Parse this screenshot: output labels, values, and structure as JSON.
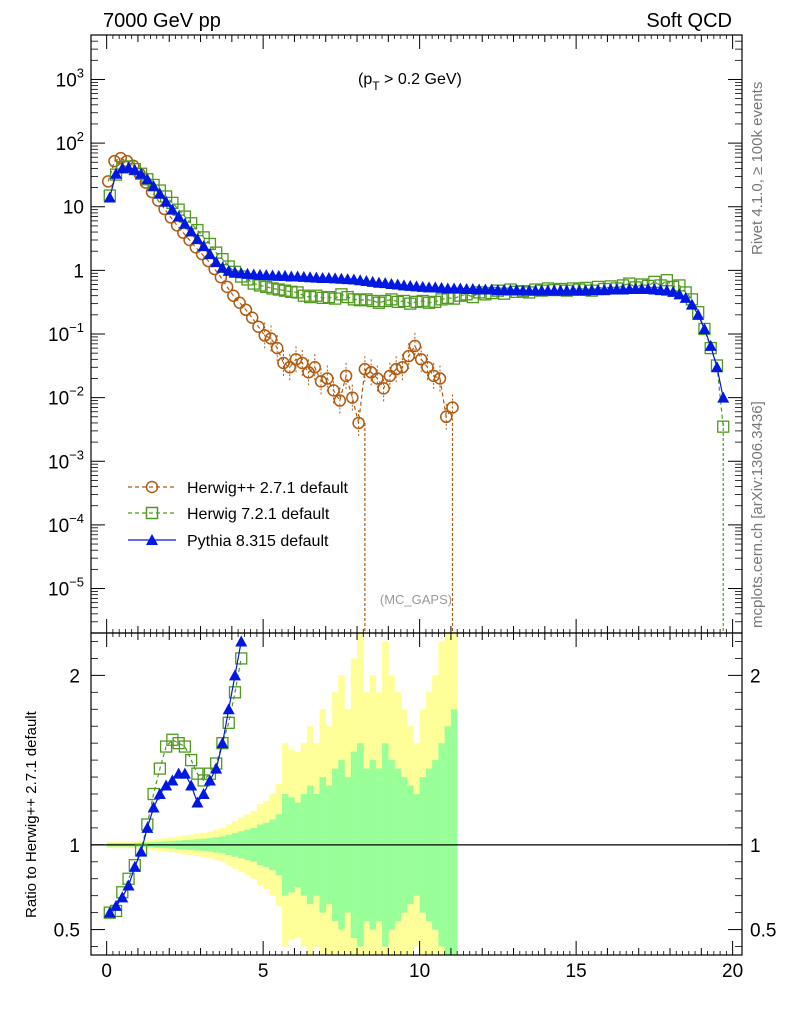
{
  "header": {
    "left": "7000 GeV pp",
    "right": "Soft QCD"
  },
  "annotations": {
    "cut": "(p",
    "cut_sub": "T",
    "cut_rest": " > 0.2 GeV)",
    "rivet": "Rivet 4.1.0, ≥ 100k events",
    "mcplots": "mcplots.cern.ch [arXiv:1306.3436]",
    "gaps": "(MC_GAPS)"
  },
  "colors": {
    "herwigpp": "#b05a10",
    "herwig7": "#4e9a1e",
    "pythia": "#0018e0",
    "band_inner": "#99ff99",
    "band_outer": "#ffff99"
  },
  "chart_data": [
    {
      "type": "line",
      "panel": "main",
      "yscale": "log",
      "xlim": [
        -0.5,
        20.3
      ],
      "ylim": [
        2e-06,
        5000
      ],
      "y_ticks": [
        "10^-5",
        "10^-4",
        "10^-3",
        "10^-2",
        "10^-1",
        "1",
        "10",
        "10^2",
        "10^3"
      ],
      "legend_position": "lower-left",
      "series": [
        {
          "name": "Herwig++ 2.7.1 default",
          "x": [
            0.05,
            0.25,
            0.45,
            0.65,
            0.85,
            1.05,
            1.25,
            1.45,
            1.65,
            1.85,
            2.05,
            2.25,
            2.45,
            2.65,
            2.85,
            3.05,
            3.25,
            3.45,
            3.65,
            3.85,
            4.05,
            4.25,
            4.45,
            4.65,
            4.85,
            5.05,
            5.25,
            5.45,
            5.65,
            5.85,
            6.05,
            6.25,
            6.45,
            6.65,
            6.85,
            7.05,
            7.25,
            7.45,
            7.65,
            7.85,
            8.05,
            8.25,
            8.45,
            8.65,
            8.85,
            9.05,
            9.25,
            9.45,
            9.65,
            9.85,
            10.05,
            10.25,
            10.45,
            10.65,
            10.85,
            11.05
          ],
          "values": [
            25,
            52,
            58,
            52,
            44,
            33,
            24,
            17,
            12.5,
            9.2,
            6.8,
            5.1,
            3.9,
            3.0,
            2.3,
            1.8,
            1.4,
            1.05,
            0.78,
            0.55,
            0.4,
            0.31,
            0.24,
            0.18,
            0.13,
            0.095,
            0.085,
            0.06,
            0.035,
            0.03,
            0.04,
            0.035,
            0.025,
            0.03,
            0.018,
            0.02,
            0.013,
            0.009,
            0.022,
            0.01,
            0.004,
            0.028,
            0.025,
            0.02,
            0.014,
            0.022,
            0.028,
            0.03,
            0.045,
            0.065,
            0.04,
            0.03,
            0.022,
            0.02,
            0.005,
            0.007
          ]
        },
        {
          "name": "Herwig 7.2.1 default",
          "x": [
            0.1,
            0.3,
            0.5,
            0.7,
            0.9,
            1.1,
            1.3,
            1.5,
            1.7,
            1.9,
            2.1,
            2.3,
            2.5,
            2.7,
            2.9,
            3.1,
            3.3,
            3.5,
            3.7,
            3.9,
            4.1,
            4.3,
            4.5,
            4.7,
            4.9,
            5.1,
            5.3,
            5.5,
            5.7,
            5.9,
            6.1,
            6.3,
            6.5,
            6.7,
            6.9,
            7.1,
            7.3,
            7.5,
            7.7,
            7.9,
            8.1,
            8.3,
            8.5,
            8.7,
            8.9,
            9.1,
            9.3,
            9.5,
            9.7,
            9.9,
            10.1,
            10.3,
            10.5,
            10.7,
            10.9,
            11.1,
            11.3,
            11.5,
            11.7,
            11.9,
            12.1,
            12.3,
            12.5,
            12.7,
            12.9,
            13.1,
            13.3,
            13.5,
            13.7,
            13.9,
            14.1,
            14.3,
            14.5,
            14.7,
            14.9,
            15.1,
            15.3,
            15.5,
            15.7,
            15.9,
            16.1,
            16.3,
            16.5,
            16.7,
            16.9,
            17.1,
            17.3,
            17.5,
            17.7,
            17.9,
            18.1,
            18.3,
            18.5,
            18.7,
            18.9,
            19.1,
            19.3,
            19.5,
            19.7
          ],
          "values": [
            15,
            32,
            42,
            43,
            39,
            33,
            27,
            22,
            18,
            14.5,
            11.5,
            9,
            7,
            5.5,
            4.3,
            3.3,
            2.6,
            1.9,
            1.5,
            1.15,
            0.95,
            0.8,
            0.72,
            0.62,
            0.58,
            0.55,
            0.52,
            0.5,
            0.48,
            0.46,
            0.45,
            0.4,
            0.38,
            0.4,
            0.37,
            0.38,
            0.36,
            0.42,
            0.38,
            0.35,
            0.34,
            0.35,
            0.33,
            0.31,
            0.33,
            0.35,
            0.32,
            0.33,
            0.3,
            0.32,
            0.33,
            0.31,
            0.32,
            0.35,
            0.37,
            0.36,
            0.4,
            0.42,
            0.38,
            0.45,
            0.42,
            0.44,
            0.48,
            0.43,
            0.5,
            0.46,
            0.47,
            0.45,
            0.5,
            0.48,
            0.52,
            0.49,
            0.51,
            0.48,
            0.52,
            0.5,
            0.53,
            0.48,
            0.55,
            0.51,
            0.56,
            0.52,
            0.58,
            0.62,
            0.54,
            0.6,
            0.57,
            0.66,
            0.58,
            0.7,
            0.55,
            0.58,
            0.45,
            0.35,
            0.22,
            0.12,
            0.06,
            0.032,
            0.0035
          ]
        },
        {
          "name": "Pythia 8.315 default",
          "x": [
            0.1,
            0.3,
            0.5,
            0.7,
            0.9,
            1.1,
            1.3,
            1.5,
            1.7,
            1.9,
            2.1,
            2.3,
            2.5,
            2.7,
            2.9,
            3.1,
            3.3,
            3.5,
            3.7,
            3.9,
            4.1,
            4.3,
            4.5,
            4.7,
            4.9,
            5.1,
            5.3,
            5.5,
            5.7,
            5.9,
            6.1,
            6.3,
            6.5,
            6.7,
            6.9,
            7.1,
            7.3,
            7.5,
            7.7,
            7.9,
            8.1,
            8.3,
            8.5,
            8.7,
            8.9,
            9.1,
            9.3,
            9.5,
            9.7,
            9.9,
            10.1,
            10.3,
            10.5,
            10.7,
            10.9,
            11.1,
            11.3,
            11.5,
            11.7,
            11.9,
            12.1,
            12.3,
            12.5,
            12.7,
            12.9,
            13.1,
            13.3,
            13.5,
            13.7,
            13.9,
            14.1,
            14.3,
            14.5,
            14.7,
            14.9,
            15.1,
            15.3,
            15.5,
            15.7,
            15.9,
            16.1,
            16.3,
            16.5,
            16.7,
            16.9,
            17.1,
            17.3,
            17.5,
            17.7,
            17.9,
            18.1,
            18.3,
            18.5,
            18.7,
            18.9,
            19.1,
            19.3,
            19.5,
            19.7
          ],
          "values": [
            14,
            33,
            40,
            41,
            38,
            33,
            27,
            21,
            16,
            12,
            9,
            7,
            5.4,
            4.1,
            3.1,
            2.4,
            1.8,
            1.35,
            1.1,
            0.98,
            0.93,
            0.9,
            0.88,
            0.86,
            0.85,
            0.84,
            0.83,
            0.82,
            0.82,
            0.8,
            0.8,
            0.79,
            0.78,
            0.77,
            0.76,
            0.76,
            0.75,
            0.74,
            0.73,
            0.72,
            0.7,
            0.68,
            0.66,
            0.64,
            0.63,
            0.61,
            0.6,
            0.58,
            0.57,
            0.56,
            0.55,
            0.54,
            0.54,
            0.53,
            0.52,
            0.52,
            0.52,
            0.51,
            0.51,
            0.5,
            0.5,
            0.5,
            0.49,
            0.49,
            0.49,
            0.49,
            0.48,
            0.48,
            0.48,
            0.48,
            0.48,
            0.48,
            0.48,
            0.48,
            0.48,
            0.48,
            0.48,
            0.49,
            0.49,
            0.49,
            0.5,
            0.5,
            0.5,
            0.51,
            0.51,
            0.51,
            0.51,
            0.5,
            0.49,
            0.48,
            0.46,
            0.42,
            0.37,
            0.29,
            0.2,
            0.12,
            0.065,
            0.03,
            0.01
          ]
        }
      ]
    },
    {
      "type": "line",
      "panel": "ratio",
      "ylabel": "Ratio to Herwig++ 2.7.1 default",
      "xlim": [
        -0.5,
        20.3
      ],
      "ylim": [
        0.35,
        2.25
      ],
      "x_ticks": [
        0,
        5,
        10,
        15,
        20
      ],
      "y_ticks": [
        0.5,
        1,
        2
      ],
      "reference": 1,
      "series": [
        {
          "name": "Herwig 7.2.1 default / Herwig++ 2.7.1 default",
          "x": [
            0.1,
            0.3,
            0.5,
            0.7,
            0.9,
            1.1,
            1.3,
            1.5,
            1.7,
            1.9,
            2.1,
            2.3,
            2.5,
            2.7,
            2.9,
            3.1,
            3.3,
            3.5,
            3.7,
            3.9,
            4.1,
            4.3
          ],
          "values": [
            0.6,
            0.61,
            0.72,
            0.8,
            0.88,
            0.97,
            1.12,
            1.3,
            1.45,
            1.58,
            1.62,
            1.6,
            1.58,
            1.5,
            1.42,
            1.38,
            1.42,
            1.48,
            1.6,
            1.72,
            1.9,
            2.1
          ]
        },
        {
          "name": "Pythia 8.315 default / Herwig++ 2.7.1 default",
          "x": [
            0.1,
            0.3,
            0.5,
            0.7,
            0.9,
            1.1,
            1.3,
            1.5,
            1.7,
            1.9,
            2.1,
            2.3,
            2.5,
            2.7,
            2.9,
            3.1,
            3.3,
            3.5,
            3.7,
            3.9,
            4.1,
            4.3
          ],
          "values": [
            0.6,
            0.64,
            0.69,
            0.76,
            0.87,
            0.96,
            1.1,
            1.22,
            1.3,
            1.35,
            1.38,
            1.42,
            1.42,
            1.35,
            1.25,
            1.3,
            1.38,
            1.45,
            1.6,
            1.8,
            2.0,
            2.2
          ]
        }
      ],
      "uncertainty_band": {
        "x_edges": [
          0,
          0.2,
          0.4,
          0.6,
          0.8,
          1.0,
          1.2,
          1.4,
          1.6,
          1.8,
          2.0,
          2.2,
          2.4,
          2.6,
          2.8,
          3.0,
          3.2,
          3.4,
          3.6,
          3.8,
          4.0,
          4.2,
          4.4,
          4.6,
          4.8,
          5.0,
          5.2,
          5.4,
          5.6,
          5.8,
          6.0,
          6.2,
          6.4,
          6.6,
          6.8,
          7.0,
          7.2,
          7.4,
          7.6,
          7.8,
          8.0,
          8.2,
          8.4,
          8.6,
          8.8,
          9.0,
          9.2,
          9.4,
          9.6,
          9.8,
          10.0,
          10.2,
          10.4,
          10.6,
          10.8,
          11.0,
          11.2
        ],
        "inner": [
          0.01,
          0.01,
          0.01,
          0.01,
          0.01,
          0.012,
          0.014,
          0.016,
          0.018,
          0.02,
          0.022,
          0.025,
          0.028,
          0.03,
          0.033,
          0.036,
          0.04,
          0.045,
          0.05,
          0.06,
          0.07,
          0.08,
          0.09,
          0.1,
          0.12,
          0.13,
          0.15,
          0.18,
          0.3,
          0.28,
          0.25,
          0.3,
          0.35,
          0.3,
          0.4,
          0.35,
          0.45,
          0.5,
          0.4,
          0.55,
          0.6,
          0.45,
          0.5,
          0.45,
          0.6,
          0.5,
          0.45,
          0.4,
          0.35,
          0.3,
          0.4,
          0.45,
          0.5,
          0.6,
          0.7,
          0.8
        ],
        "outer": [
          0.02,
          0.02,
          0.02,
          0.02,
          0.02,
          0.024,
          0.028,
          0.032,
          0.036,
          0.04,
          0.044,
          0.05,
          0.056,
          0.06,
          0.066,
          0.072,
          0.08,
          0.09,
          0.1,
          0.12,
          0.14,
          0.16,
          0.18,
          0.2,
          0.24,
          0.26,
          0.3,
          0.36,
          0.6,
          0.56,
          0.55,
          0.6,
          0.7,
          0.6,
          0.8,
          0.7,
          0.9,
          1.0,
          0.8,
          1.1,
          1.3,
          0.9,
          1.0,
          0.9,
          1.2,
          1.0,
          0.9,
          0.8,
          0.7,
          0.6,
          0.8,
          0.9,
          1.0,
          1.2,
          1.4,
          1.6
        ]
      }
    }
  ]
}
